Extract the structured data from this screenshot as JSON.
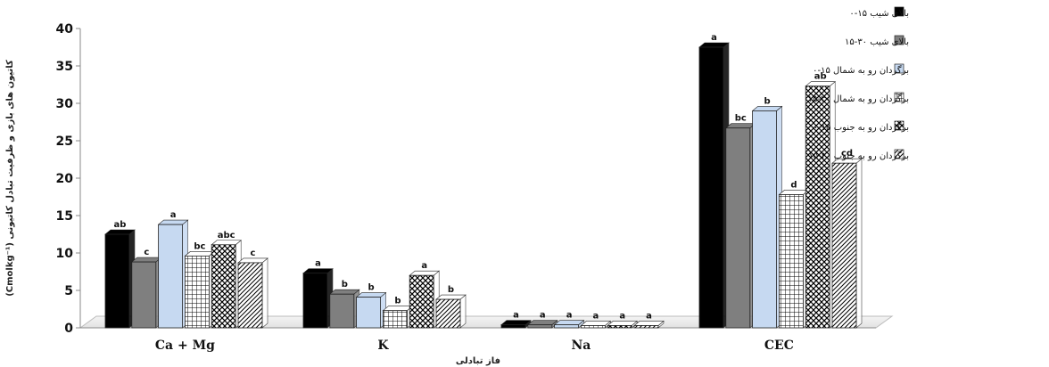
{
  "chart_data": {
    "type": "bar",
    "categories": [
      "Ca + Mg",
      "K",
      "Na",
      "CEC"
    ],
    "xlabel": "فاز تبادلی",
    "ylabel": "کاتیون های بازی و ظرفیت تبادل کاتیونی (Cmolkg⁻¹)",
    "ylim": [
      0,
      40
    ],
    "yticks": [
      0,
      5,
      10,
      15,
      20,
      25,
      30,
      35,
      40
    ],
    "grid": false,
    "legend_position": "right",
    "series": [
      {
        "name": "بالای شیب ۱۵-۰",
        "values": [
          12.5,
          7.3,
          0.4,
          37.5
        ],
        "labels": [
          "ab",
          "a",
          "a",
          "a"
        ],
        "color": "#000000",
        "pattern": "solid"
      },
      {
        "name": "بالای شیب ۳۰-۱۵",
        "values": [
          8.8,
          4.5,
          0.4,
          26.7
        ],
        "labels": [
          "c",
          "b",
          "a",
          "bc"
        ],
        "color": "#7f7f7f",
        "pattern": "solid"
      },
      {
        "name": "برگردان رو به شمال ۱۵-۰",
        "values": [
          13.8,
          4.1,
          0.4,
          29.0
        ],
        "labels": [
          "a",
          "b",
          "a",
          "b"
        ],
        "color": "#c6d9f1",
        "pattern": "solid"
      },
      {
        "name": "برگردان رو به شمال ۳۰-۱۵",
        "values": [
          9.6,
          2.3,
          0.3,
          17.8
        ],
        "labels": [
          "bc",
          "b",
          "a",
          "d"
        ],
        "color": "#ffffff",
        "pattern": "grid"
      },
      {
        "name": "برگردان رو به جنوب ۱۵-۰",
        "values": [
          11.1,
          7.0,
          0.3,
          32.3
        ],
        "labels": [
          "abc",
          "a",
          "a",
          "ab"
        ],
        "color": "#ffffff",
        "pattern": "crosshatch"
      },
      {
        "name": "برگردان رو به جنوب ۳۰-۱۵",
        "values": [
          8.7,
          3.8,
          0.3,
          22.0
        ],
        "labels": [
          "c",
          "b",
          "a",
          "cd"
        ],
        "color": "#ffffff",
        "pattern": "diagonal"
      }
    ]
  }
}
